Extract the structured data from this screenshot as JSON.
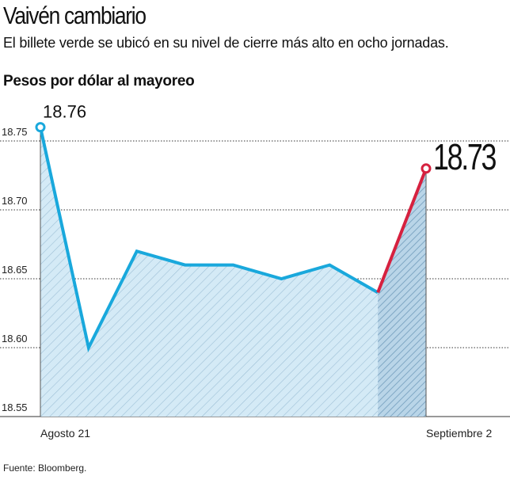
{
  "header": {
    "title": "Vaivén cambiario",
    "subtitle": "El billete verde se ubicó en su nivel de cierre más alto en ocho jornadas."
  },
  "footer": {
    "source": "Fuente: Bloomberg."
  },
  "chart_data": {
    "type": "area",
    "title": "Vaivén cambiario",
    "ylabel": "Pesos por dólar al mayoreo",
    "xlabel": "",
    "x_tick_labels": [
      "Agosto 21",
      "Septiembre 2"
    ],
    "y_ticks": [
      "18.75",
      "18.70",
      "18.65",
      "18.60",
      "18.55"
    ],
    "ylim": [
      18.55,
      18.77
    ],
    "grid": "horizontal dotted",
    "series": [
      {
        "values": [
          18.76,
          18.6,
          18.67,
          18.66,
          18.66,
          18.65,
          18.66,
          18.64,
          18.73
        ]
      }
    ],
    "annotations": [
      {
        "index": 0,
        "text": "18.76"
      },
      {
        "index": 8,
        "text": "18.73"
      }
    ],
    "colors": {
      "line": "#19a8dc",
      "last_segment": "#d6213f",
      "fill": "#d4eaf6",
      "fill_last": "#b9d5e8"
    }
  }
}
